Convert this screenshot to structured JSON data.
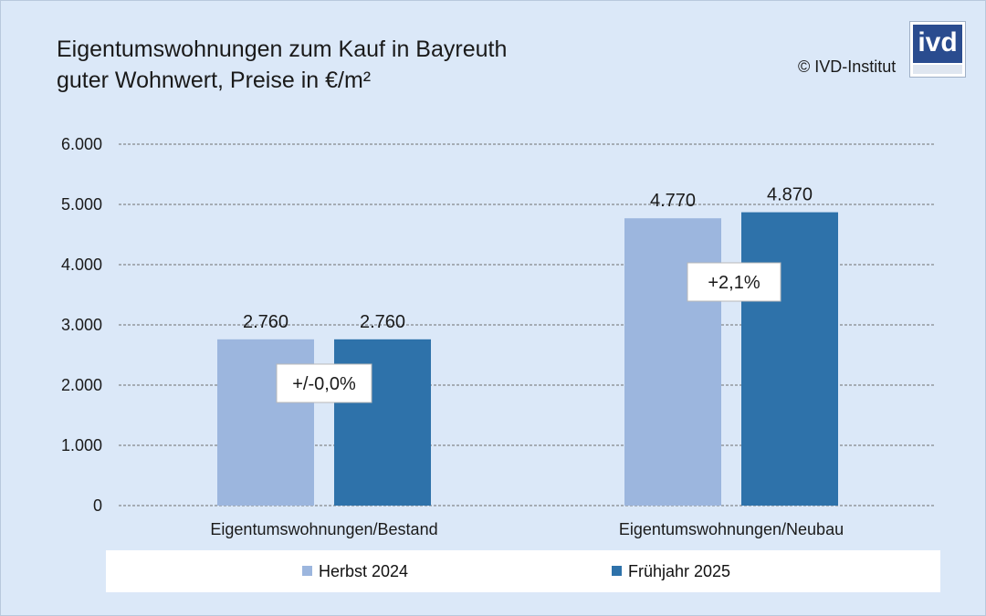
{
  "header": {
    "title_line1": "Eigentumswohnungen zum Kauf in Bayreuth",
    "title_line2": "guter Wohnwert, Preise in €/m²",
    "copyright": "© IVD-Institut",
    "logo_text": "ivd"
  },
  "chart_data": {
    "type": "bar",
    "categories": [
      "Eigentumswohnungen/Bestand",
      "Eigentumswohnungen/Neubau"
    ],
    "series": [
      {
        "name": "Herbst 2024",
        "values": [
          2760,
          4770
        ],
        "color": "#9cb6de"
      },
      {
        "name": "Frühjahr 2025",
        "values": [
          2760,
          4870
        ],
        "color": "#2e72aa"
      }
    ],
    "data_labels": [
      [
        "2.760",
        "4.770"
      ],
      [
        "2.760",
        "4.870"
      ]
    ],
    "change_labels": [
      "+/-0,0%",
      "+2,1%"
    ],
    "yticks": [
      "0",
      "1.000",
      "2.000",
      "3.000",
      "4.000",
      "5.000",
      "6.000"
    ],
    "ylim": [
      0,
      6000
    ],
    "grid": true,
    "legend_position": "bottom"
  }
}
